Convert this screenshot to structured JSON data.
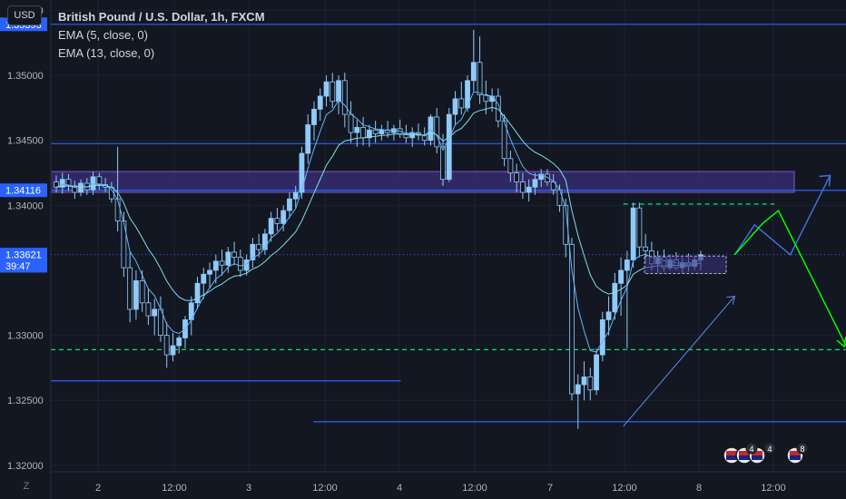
{
  "header": {
    "currency_label": "USD",
    "title": "British Pound / U.S. Dollar, 1h, FXCM",
    "indicators": [
      "EMA (5, close, 0)",
      "EMA (13, close, 0)"
    ],
    "zoom_label": "Z"
  },
  "colors": {
    "background": "#131722",
    "grid": "#1e2230",
    "candle": "#90caf9",
    "candle_border": "#2962ff",
    "ema5": "#64b5f6",
    "ema13": "#80deea",
    "hline": "#2962ff",
    "zone_fill": "#3b2f7a",
    "green_dash": "#00e676",
    "green_arrow": "#00ff00",
    "projection": "#3f6fd8",
    "axis_text": "#b2b5be",
    "price_badge": "#2962ff"
  },
  "chart_data": {
    "type": "candlestick",
    "y_axis": {
      "range": [
        1.3195,
        1.3558
      ],
      "ticks": [
        "1.35500",
        "1.35000",
        "1.34500",
        "1.34000",
        "1.33000",
        "1.32500",
        "1.32000"
      ]
    },
    "x_axis": {
      "tick_labels": [
        "2",
        "12:00",
        "3",
        "12:00",
        "4",
        "12:00",
        "7",
        "12:00",
        "8",
        "12:00"
      ]
    },
    "price_badges": [
      {
        "label": "1.35393",
        "value": 1.35393
      },
      {
        "label": "1.34116",
        "value": 1.34116
      },
      {
        "label": "1.33621",
        "value": 1.33621
      },
      {
        "label": "39:47",
        "value": 1.33535
      }
    ],
    "horizontal_lines": [
      1.35393,
      1.34475,
      1.34116
    ],
    "segments": [
      {
        "value": 1.3265,
        "x_from": 0.0,
        "x_to": 0.44
      },
      {
        "value": 1.32335,
        "x_from": 0.33,
        "x_to": 1.0
      }
    ],
    "zone": {
      "top": 1.3426,
      "bottom": 1.341
    },
    "small_box": {
      "top": 1.3361,
      "bottom": 1.33475
    },
    "dashed_levels": [
      {
        "value": 1.3401,
        "x_from": 0.72,
        "x_to": 0.91
      },
      {
        "value": 1.3289,
        "x_from": 0.0,
        "x_to": 1.0
      }
    ],
    "dotted_level": 1.33621,
    "candles": [
      [
        1.3418,
        1.3423,
        1.341,
        1.3414
      ],
      [
        1.3414,
        1.3425,
        1.3409,
        1.342
      ],
      [
        1.342,
        1.3424,
        1.3411,
        1.3415
      ],
      [
        1.3415,
        1.3419,
        1.3405,
        1.341
      ],
      [
        1.341,
        1.342,
        1.3407,
        1.3417
      ],
      [
        1.3417,
        1.3421,
        1.3408,
        1.3412
      ],
      [
        1.3412,
        1.3426,
        1.3408,
        1.3422
      ],
      [
        1.3422,
        1.3425,
        1.3412,
        1.3416
      ],
      [
        1.3416,
        1.3421,
        1.341,
        1.3414
      ],
      [
        1.3414,
        1.3418,
        1.3402,
        1.3405
      ],
      [
        1.3405,
        1.3445,
        1.338,
        1.3388
      ],
      [
        1.3388,
        1.3395,
        1.3345,
        1.3352
      ],
      [
        1.3352,
        1.3365,
        1.331,
        1.332
      ],
      [
        1.332,
        1.335,
        1.3312,
        1.3342
      ],
      [
        1.3342,
        1.335,
        1.3318,
        1.3325
      ],
      [
        1.3325,
        1.3336,
        1.3308,
        1.3315
      ],
      [
        1.3315,
        1.3328,
        1.33,
        1.332
      ],
      [
        1.332,
        1.333,
        1.3295,
        1.33
      ],
      [
        1.33,
        1.331,
        1.3275,
        1.3285
      ],
      [
        1.3285,
        1.3302,
        1.328,
        1.3292
      ],
      [
        1.3292,
        1.33,
        1.3286,
        1.3298
      ],
      [
        1.3298,
        1.3315,
        1.329,
        1.3312
      ],
      [
        1.3312,
        1.333,
        1.33,
        1.3325
      ],
      [
        1.3325,
        1.3345,
        1.332,
        1.334
      ],
      [
        1.334,
        1.3352,
        1.3328,
        1.3347
      ],
      [
        1.3347,
        1.3356,
        1.3336,
        1.335
      ],
      [
        1.335,
        1.3362,
        1.334,
        1.3357
      ],
      [
        1.3357,
        1.3366,
        1.3346,
        1.3354
      ],
      [
        1.3354,
        1.3368,
        1.3348,
        1.3364
      ],
      [
        1.3364,
        1.3372,
        1.3354,
        1.336
      ],
      [
        1.336,
        1.3366,
        1.3345,
        1.335
      ],
      [
        1.335,
        1.3362,
        1.3346,
        1.3358
      ],
      [
        1.3358,
        1.3375,
        1.3352,
        1.337
      ],
      [
        1.337,
        1.3378,
        1.336,
        1.3366
      ],
      [
        1.3366,
        1.3382,
        1.3362,
        1.3378
      ],
      [
        1.3378,
        1.3395,
        1.3372,
        1.339
      ],
      [
        1.339,
        1.3398,
        1.338,
        1.3386
      ],
      [
        1.3386,
        1.34,
        1.338,
        1.3396
      ],
      [
        1.3396,
        1.341,
        1.339,
        1.3405
      ],
      [
        1.3405,
        1.3415,
        1.3398,
        1.341
      ],
      [
        1.341,
        1.3445,
        1.3405,
        1.344
      ],
      [
        1.344,
        1.347,
        1.3432,
        1.3462
      ],
      [
        1.3462,
        1.348,
        1.345,
        1.3474
      ],
      [
        1.3474,
        1.349,
        1.3465,
        1.3484
      ],
      [
        1.3484,
        1.35,
        1.3476,
        1.3495
      ],
      [
        1.3495,
        1.3502,
        1.3475,
        1.348
      ],
      [
        1.348,
        1.35,
        1.347,
        1.3496
      ],
      [
        1.3496,
        1.3502,
        1.346,
        1.347
      ],
      [
        1.347,
        1.348,
        1.3448,
        1.3456
      ],
      [
        1.3456,
        1.3466,
        1.3445,
        1.346
      ],
      [
        1.346,
        1.3468,
        1.3446,
        1.3452
      ],
      [
        1.3452,
        1.3462,
        1.3445,
        1.3458
      ],
      [
        1.3458,
        1.3465,
        1.3448,
        1.3455
      ],
      [
        1.3455,
        1.3462,
        1.345,
        1.3458
      ],
      [
        1.3458,
        1.3465,
        1.3452,
        1.3456
      ],
      [
        1.3456,
        1.3462,
        1.345,
        1.3459
      ],
      [
        1.3459,
        1.3466,
        1.3452,
        1.3455
      ],
      [
        1.3455,
        1.3462,
        1.3448,
        1.3452
      ],
      [
        1.3452,
        1.346,
        1.3445,
        1.3456
      ],
      [
        1.3456,
        1.3463,
        1.345,
        1.3454
      ],
      [
        1.3454,
        1.346,
        1.3446,
        1.345
      ],
      [
        1.345,
        1.347,
        1.3446,
        1.3468
      ],
      [
        1.3468,
        1.3475,
        1.344,
        1.3445
      ],
      [
        1.3445,
        1.3455,
        1.3415,
        1.342
      ],
      [
        1.342,
        1.3475,
        1.3418,
        1.347
      ],
      [
        1.347,
        1.3488,
        1.3462,
        1.3482
      ],
      [
        1.3482,
        1.3495,
        1.347,
        1.3475
      ],
      [
        1.3475,
        1.35,
        1.3472,
        1.3496
      ],
      [
        1.3496,
        1.3535,
        1.3488,
        1.351
      ],
      [
        1.351,
        1.353,
        1.3478,
        1.3485
      ],
      [
        1.3485,
        1.3496,
        1.347,
        1.348
      ],
      [
        1.348,
        1.349,
        1.3472,
        1.3484
      ],
      [
        1.3484,
        1.349,
        1.346,
        1.3465
      ],
      [
        1.3465,
        1.347,
        1.343,
        1.3436
      ],
      [
        1.3436,
        1.3442,
        1.3418,
        1.3425
      ],
      [
        1.3425,
        1.3432,
        1.341,
        1.3418
      ],
      [
        1.3418,
        1.3425,
        1.3405,
        1.341
      ],
      [
        1.341,
        1.342,
        1.3403,
        1.3414
      ],
      [
        1.3414,
        1.3425,
        1.3408,
        1.342
      ],
      [
        1.342,
        1.3428,
        1.3414,
        1.3424
      ],
      [
        1.3424,
        1.3428,
        1.3415,
        1.3418
      ],
      [
        1.3418,
        1.3424,
        1.3408,
        1.3412
      ],
      [
        1.3412,
        1.3416,
        1.3395,
        1.34
      ],
      [
        1.34,
        1.3405,
        1.336,
        1.337
      ],
      [
        1.337,
        1.3375,
        1.325,
        1.3255
      ],
      [
        1.3255,
        1.327,
        1.3228,
        1.3262
      ],
      [
        1.3262,
        1.328,
        1.325,
        1.3268
      ],
      [
        1.3268,
        1.3275,
        1.325,
        1.3258
      ],
      [
        1.3258,
        1.329,
        1.3254,
        1.3285
      ],
      [
        1.3285,
        1.3318,
        1.328,
        1.3312
      ],
      [
        1.3312,
        1.333,
        1.33,
        1.3318
      ],
      [
        1.3318,
        1.3348,
        1.3312,
        1.334
      ],
      [
        1.334,
        1.336,
        1.3315,
        1.335
      ],
      [
        1.335,
        1.3365,
        1.329,
        1.3358
      ],
      [
        1.3358,
        1.3402,
        1.3352,
        1.3398
      ],
      [
        1.3398,
        1.3402,
        1.336,
        1.3368
      ],
      [
        1.3368,
        1.3378,
        1.3355,
        1.3365
      ],
      [
        1.3365,
        1.3372,
        1.335,
        1.3355
      ],
      [
        1.3355,
        1.3365,
        1.3348,
        1.336
      ],
      [
        1.336,
        1.3366,
        1.3349,
        1.3352
      ],
      [
        1.3352,
        1.3362,
        1.335,
        1.3358
      ],
      [
        1.3358,
        1.3364,
        1.335,
        1.3352
      ],
      [
        1.3352,
        1.336,
        1.3348,
        1.3356
      ],
      [
        1.3356,
        1.3363,
        1.3349,
        1.3353
      ],
      [
        1.3353,
        1.3361,
        1.335,
        1.3358
      ],
      [
        1.3358,
        1.3365,
        1.335,
        1.3362
      ]
    ],
    "forecast_path": [
      [
        0.86,
        1.3362
      ],
      [
        0.885,
        1.3385
      ],
      [
        0.93,
        1.3362
      ],
      [
        0.98,
        1.3423
      ]
    ],
    "green_path": [
      [
        0.86,
        1.3362
      ],
      [
        0.895,
        1.3386
      ],
      [
        0.915,
        1.3396
      ],
      [
        1.0,
        1.3292
      ]
    ],
    "trend_arrow": [
      [
        0.72,
        1.323
      ],
      [
        0.86,
        1.333
      ]
    ],
    "legend_placement": "top-left",
    "flag_badges": [
      {
        "count": "4"
      },
      {
        "count": "4"
      },
      {
        "count": "8"
      }
    ]
  }
}
